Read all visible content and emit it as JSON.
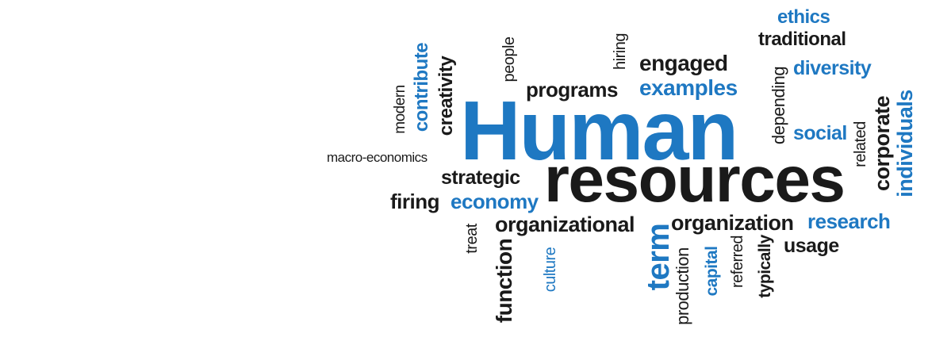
{
  "words": {
    "human": "Human",
    "resources": "resources",
    "ethics": "ethics",
    "traditional": "traditional",
    "diversity": "diversity",
    "engaged": "engaged",
    "examples": "examples",
    "programs": "programs",
    "hiring": "hiring",
    "people": "people",
    "creativity": "creativity",
    "contribute": "contribute",
    "modern": "modern",
    "macro_economics": "macro-economics",
    "strategic": "strategic",
    "firing": "firing",
    "economy": "economy",
    "organizational": "organizational",
    "treat": "treat",
    "function": "function",
    "culture": "culture",
    "term": "term",
    "organization": "organization",
    "production": "production",
    "capital": "capital",
    "referred": "referred",
    "typically": "typically",
    "usage": "usage",
    "research": "research",
    "social": "social",
    "depending": "depending",
    "related": "related",
    "corporate": "corporate",
    "individuals": "individuals"
  },
  "colors": {
    "blue": "#1e78c2",
    "black": "#1a1a1a",
    "background": "#ffffff"
  }
}
